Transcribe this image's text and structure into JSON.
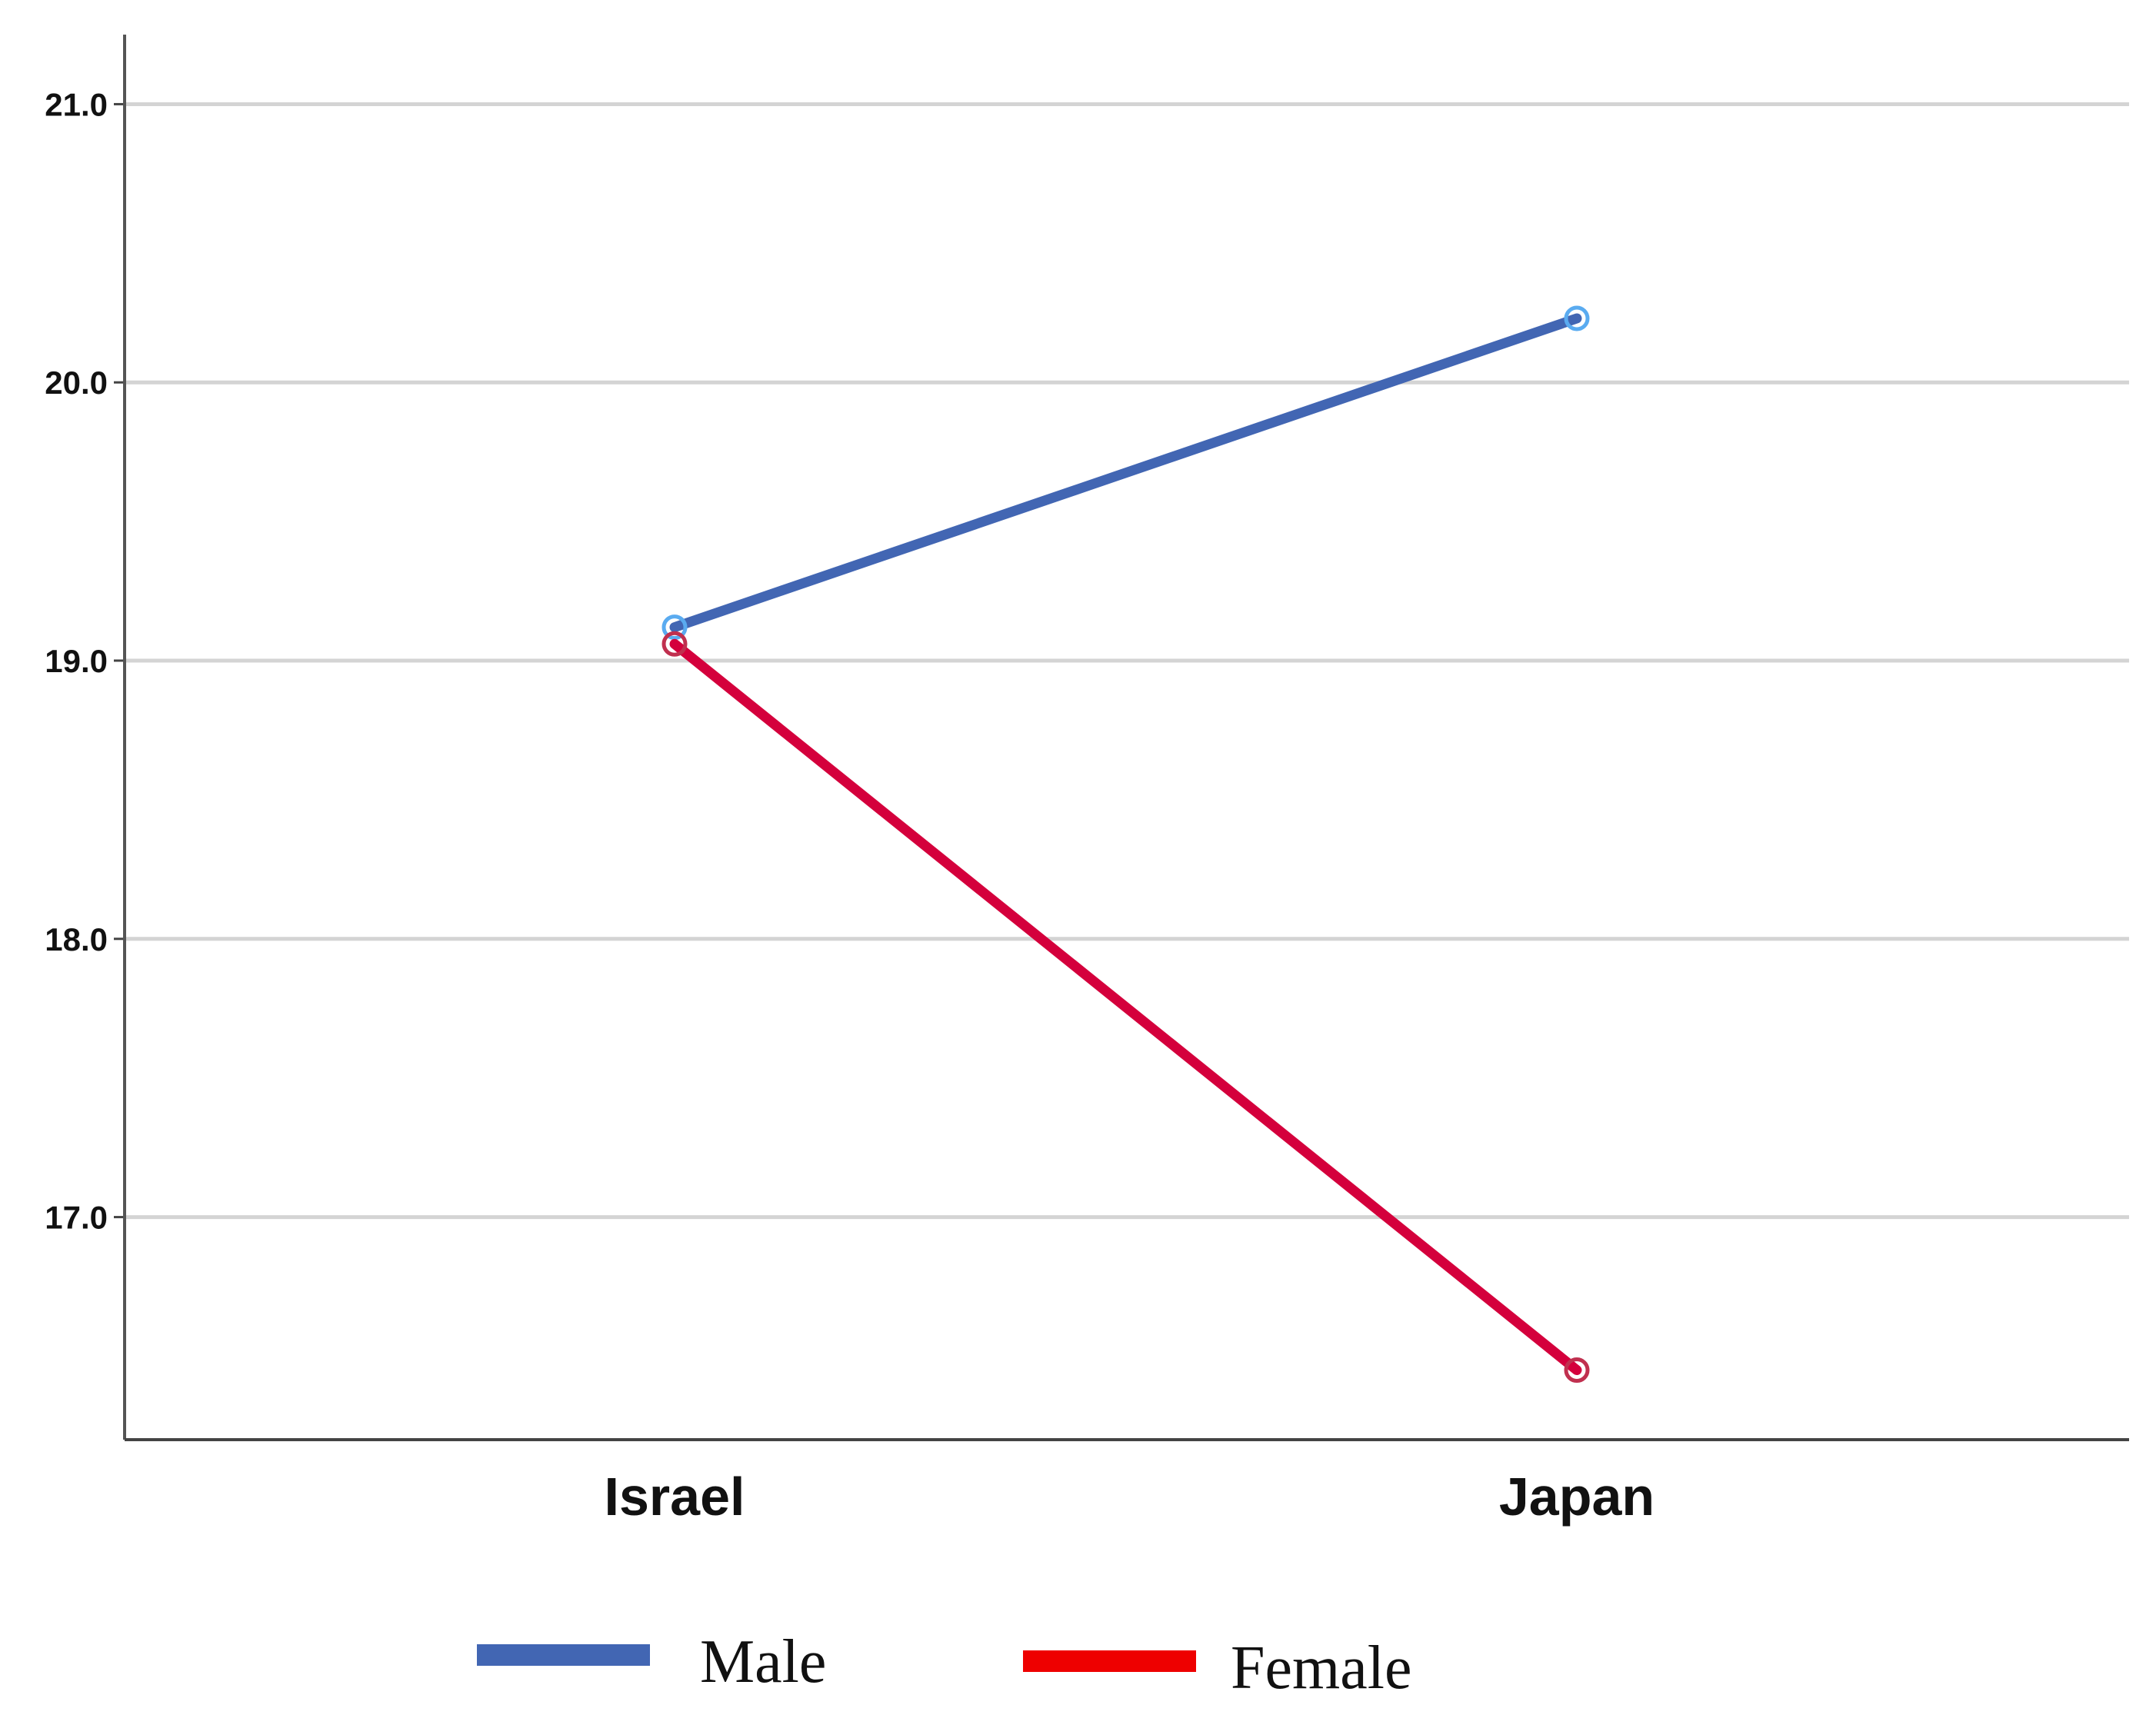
{
  "chart_data": {
    "type": "line",
    "title": "",
    "xlabel": "",
    "ylabel": "",
    "categories": [
      "Israel",
      "Japan"
    ],
    "y_ticks": [
      "17.0",
      "18.0",
      "19.0",
      "20.0",
      "21.0"
    ],
    "ylim": [
      16.2,
      21.25
    ],
    "grid": true,
    "legend_position": "bottom",
    "series": [
      {
        "name": "Male",
        "values": [
          19.12,
          20.23
        ],
        "color": "#4266b3",
        "marker_color": "#5aabf0"
      },
      {
        "name": "Female",
        "values": [
          19.06,
          16.45
        ],
        "color": "#d4003c",
        "marker_color": "#c0304f"
      }
    ],
    "legend": [
      {
        "label": "Male",
        "color": "#4266b3"
      },
      {
        "label": "Female",
        "color": "#ee0000"
      }
    ]
  }
}
